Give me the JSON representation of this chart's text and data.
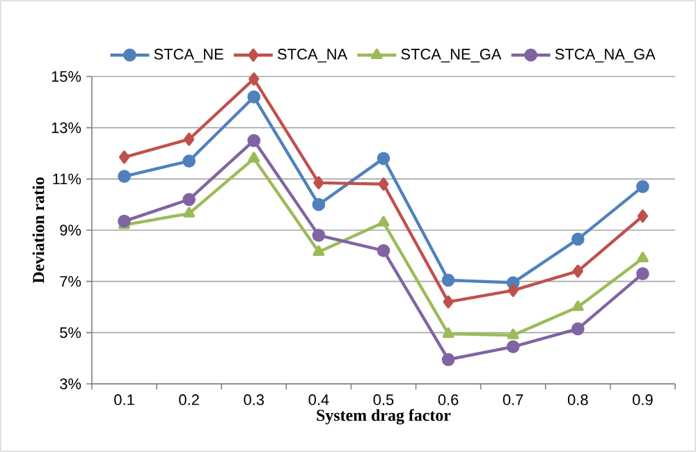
{
  "chart_data": {
    "type": "line",
    "xlabel": "System drag factor",
    "ylabel": "Deviation ratio",
    "categories": [
      "0.1",
      "0.2",
      "0.3",
      "0.4",
      "0.5",
      "0.6",
      "0.7",
      "0.8",
      "0.9"
    ],
    "ylim": [
      3,
      15
    ],
    "yticks": [
      {
        "value": 3,
        "label": "3%"
      },
      {
        "value": 5,
        "label": "5%"
      },
      {
        "value": 7,
        "label": "7%"
      },
      {
        "value": 9,
        "label": "9%"
      },
      {
        "value": 11,
        "label": "11%"
      },
      {
        "value": 13,
        "label": "13%"
      },
      {
        "value": 15,
        "label": "15%"
      }
    ],
    "grid": "y",
    "legend": "top",
    "line_style": "solid",
    "series": [
      {
        "name": "STCA_NE",
        "color": "#4f81bd",
        "marker": "circle",
        "values": [
          11.1,
          11.7,
          14.2,
          10.0,
          11.8,
          7.05,
          6.95,
          8.65,
          10.7
        ]
      },
      {
        "name": "STCA_NA",
        "color": "#c0504d",
        "marker": "diamond",
        "values": [
          11.85,
          12.55,
          14.9,
          10.85,
          10.8,
          6.2,
          6.65,
          7.4,
          9.55
        ]
      },
      {
        "name": "STCA_NE_GA",
        "color": "#9bbb59",
        "marker": "triangle",
        "values": [
          9.2,
          9.65,
          11.8,
          8.15,
          9.3,
          4.95,
          4.9,
          6.0,
          7.9
        ]
      },
      {
        "name": "STCA_NA_GA",
        "color": "#8064a2",
        "marker": "circle",
        "values": [
          9.35,
          10.2,
          12.5,
          8.8,
          8.2,
          3.95,
          4.45,
          5.15,
          7.3
        ]
      }
    ]
  }
}
